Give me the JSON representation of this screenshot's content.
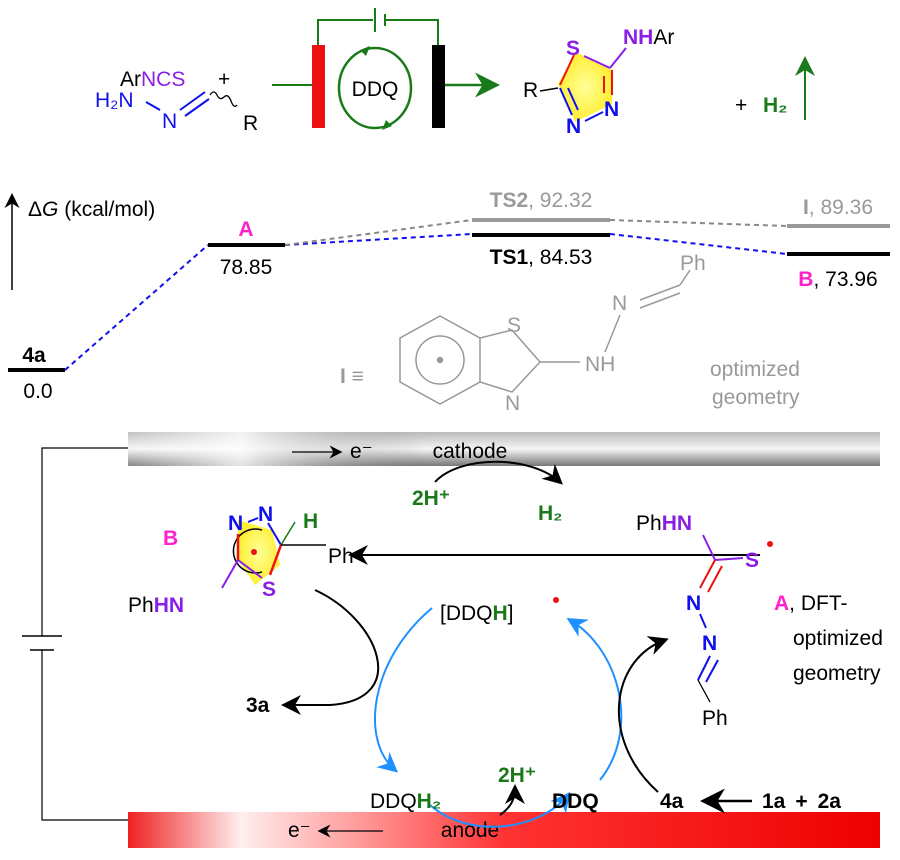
{
  "colors": {
    "blue": "#1010ee",
    "purple": "#8a1ee6",
    "red": "#ee1111",
    "green": "#1a7a1a",
    "magenta": "#ff22cc",
    "gray": "#888888",
    "cycle_blue": "#1e90ff"
  },
  "scheme": {
    "reagent1_ar": "Ar",
    "reagent1_ncs": "NCS",
    "plus": "+",
    "hydrazone_h2n": "H₂N",
    "hydrazone_n": "N",
    "hydrazone_r": "R",
    "mediator": "DDQ",
    "product_r": "R",
    "product_s": "S",
    "product_n1": "N",
    "product_n2": "N",
    "product_nh": "NH",
    "product_ar": "Ar",
    "h2": "H₂"
  },
  "energy": {
    "axis_label_delta": "Δ",
    "axis_label_g": "G",
    "axis_label_unit": " (kcal/mol)",
    "levels": [
      {
        "name": "4a",
        "value": "0.0"
      },
      {
        "name": "A",
        "value": "78.85"
      },
      {
        "name": "TS2",
        "value": ", 92.32"
      },
      {
        "name": "TS1",
        "value": ", 84.53"
      },
      {
        "name": "I",
        "value": ", 89.36"
      },
      {
        "name": "B",
        "value": ", 73.96"
      }
    ],
    "intermediate_I": {
      "label": "I ≡",
      "s": "S",
      "n_ring": "N",
      "nh": "NH",
      "n": "N",
      "ph": "Ph",
      "note1": "optimized",
      "note2": "geometry"
    }
  },
  "mechanism": {
    "cathode": "cathode",
    "anode": "anode",
    "electron": "e⁻",
    "two_h_plus": "2H⁺",
    "h2": "H₂",
    "B_label": "B",
    "B_n1": "N",
    "B_n2": "N",
    "B_h": "H",
    "B_ph": "Ph",
    "B_s": "S",
    "B_phhn_ph": "Ph",
    "B_phhn_hn": "HN",
    "A_phhn_ph": "Ph",
    "A_phhn_hn": "HN",
    "A_s": "S",
    "A_n1": "N",
    "A_n2": "N",
    "A_ph": "Ph",
    "A_label": "A",
    "A_note1": ", DFT-",
    "A_note2": "optimized",
    "A_note3": "geometry",
    "ddqh_open": "[DDQ",
    "ddqh_h": "H",
    "ddqh_close": "]",
    "ddqh2_ddq": "DDQ",
    "ddqh2_h2": "H₂",
    "ddq": "DDQ",
    "two_h_plus_anode": "2H⁺",
    "product_3a": "3a",
    "start_4a": "4a",
    "reactant_1a": "1a",
    "plus": "+",
    "reactant_2a": "2a"
  }
}
